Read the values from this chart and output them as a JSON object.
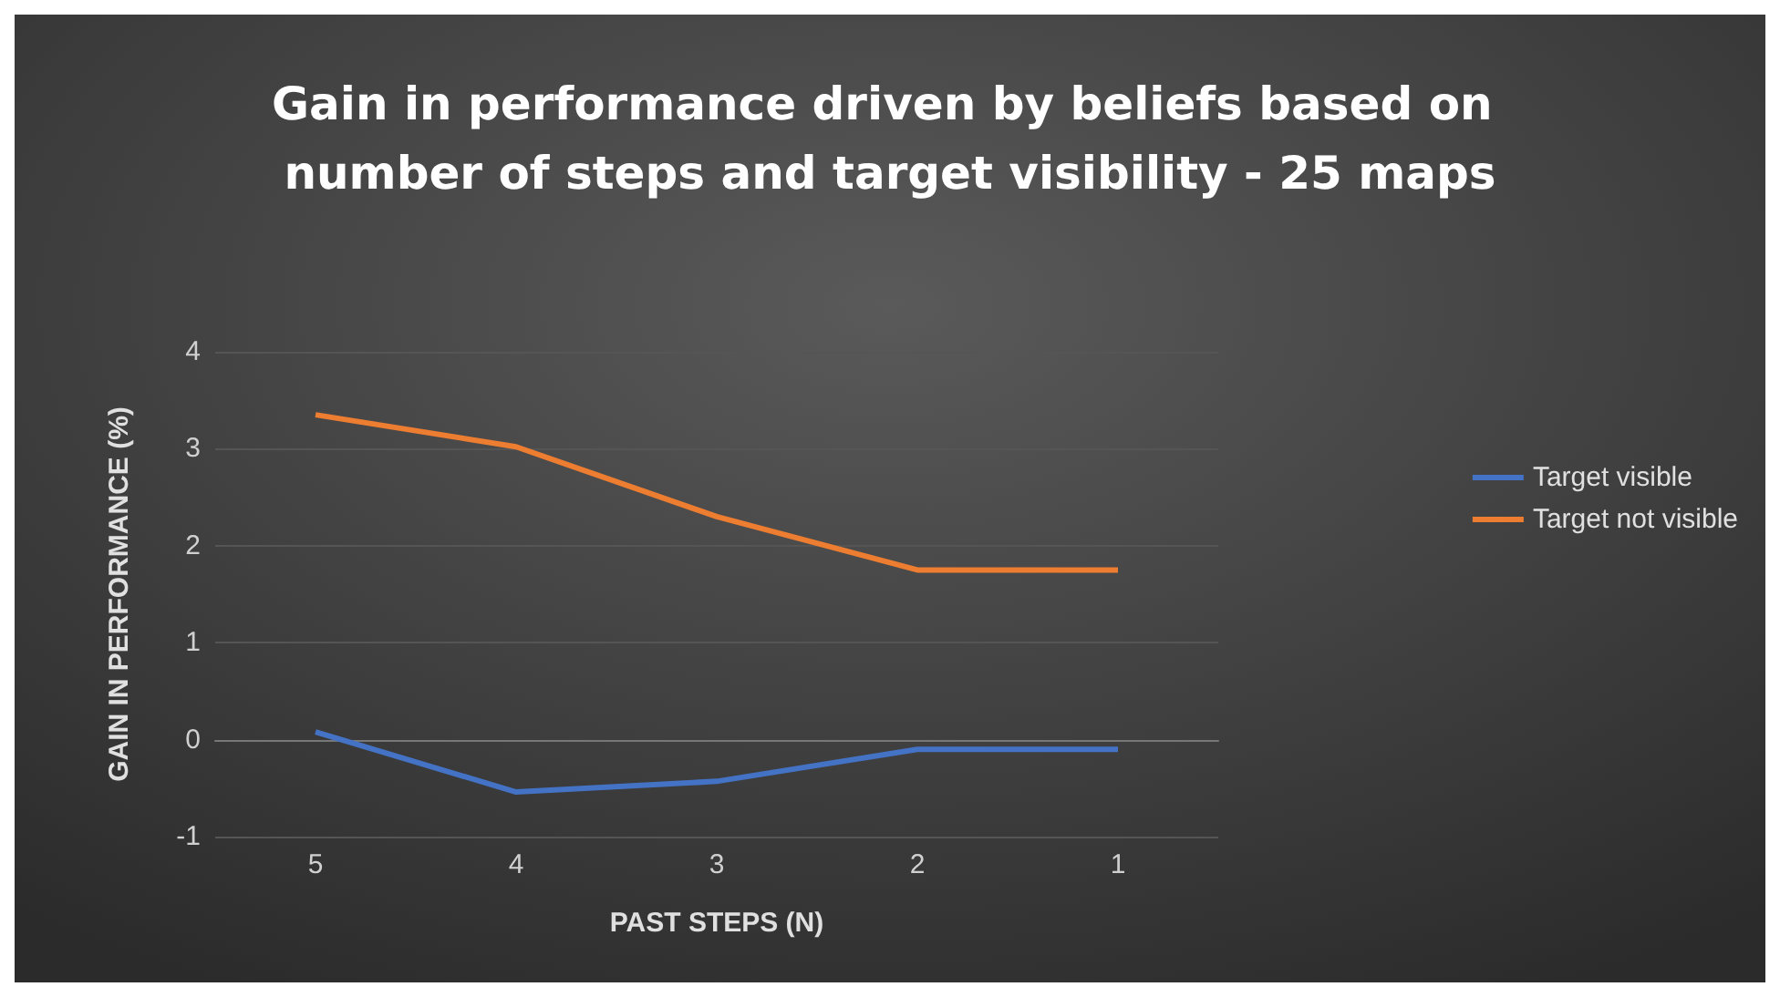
{
  "chart_data": {
    "type": "line",
    "title": "Gain in performance driven by beliefs based on number of steps and target visibility - 25 maps",
    "xlabel": "PAST STEPS (N)",
    "ylabel": "GAIN IN PERFORMANCE (%)",
    "categories": [
      "5",
      "4",
      "3",
      "2",
      "1"
    ],
    "series": [
      {
        "name": "Target visible",
        "color": "#4472c4",
        "values": [
          0.08,
          -0.54,
          -0.43,
          -0.1,
          -0.1
        ]
      },
      {
        "name": "Target not visible",
        "color": "#ed7d31",
        "values": [
          3.35,
          3.02,
          2.3,
          1.75,
          1.75
        ]
      }
    ],
    "ylim": [
      -1,
      4
    ],
    "yticks": [
      -1,
      0,
      1,
      2,
      3,
      4
    ],
    "grid": "y",
    "legend": "right",
    "marker": "none",
    "line_style": "solid"
  }
}
